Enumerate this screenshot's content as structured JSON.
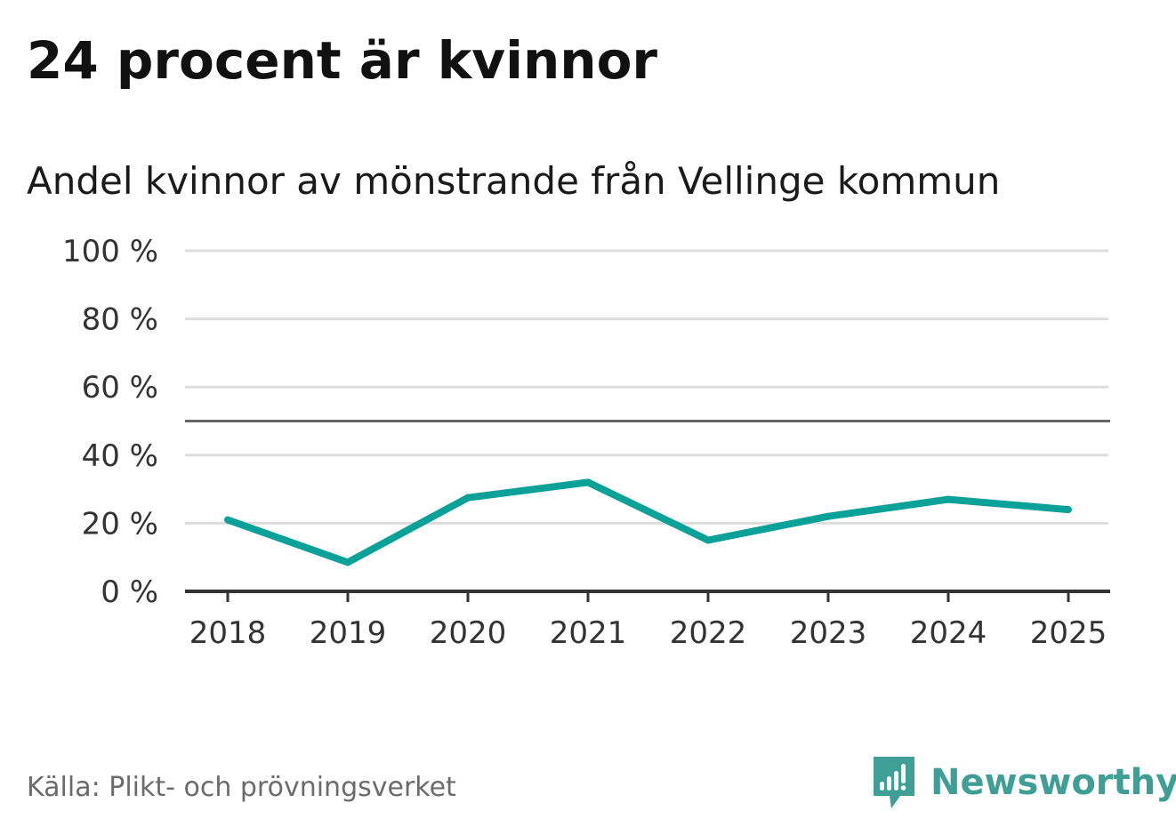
{
  "title": "24 procent är kvinnor",
  "subtitle": "Andel kvinnor av mönstrande från Vellinge kommun",
  "source": "Källa: Plikt- och prövningsverket",
  "brand": {
    "name": "Newsworthy",
    "logo_icon": "newsworthy-bar-chart-logo-icon",
    "color": "#3f9e96"
  },
  "colors": {
    "line": "#0aa198",
    "grid": "#dddddd",
    "reference_line": "#666666",
    "axis": "#333333"
  },
  "chart_data": {
    "type": "line",
    "x": [
      "2018",
      "2019",
      "2020",
      "2021",
      "2022",
      "2023",
      "2024",
      "2025"
    ],
    "series": [
      {
        "values": [
          21,
          8.5,
          27.5,
          32,
          15,
          22,
          27,
          24
        ]
      }
    ],
    "ylim": [
      0,
      100
    ],
    "yticks": [
      0,
      20,
      40,
      60,
      80,
      100
    ],
    "ytick_labels": [
      "0 %",
      "20 %",
      "40 %",
      "60 %",
      "80 %",
      "100 %"
    ],
    "reference_line": 50,
    "grid": true,
    "legend": "none"
  }
}
